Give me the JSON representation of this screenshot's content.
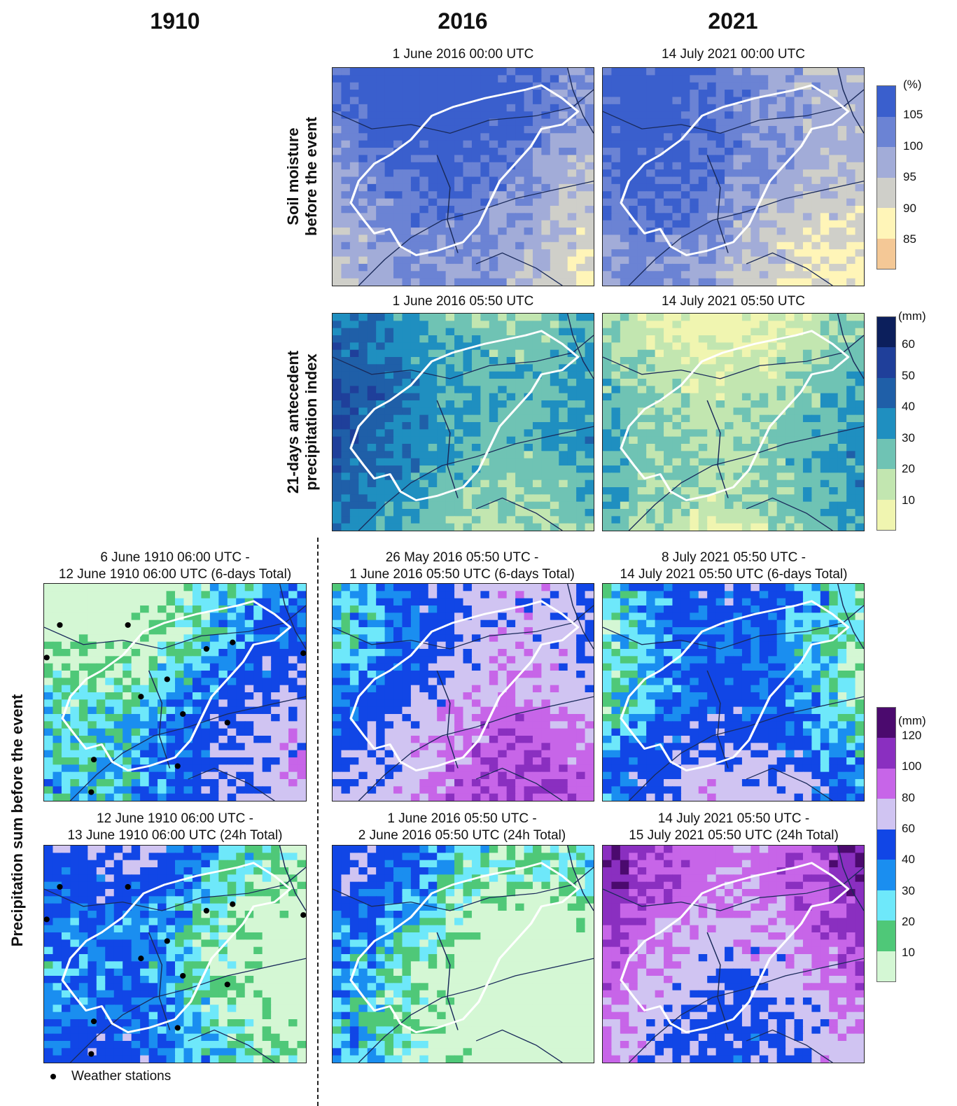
{
  "columns": [
    "1910",
    "2016",
    "2021"
  ],
  "rows": [
    {
      "label_lines": [
        "Soil moisture",
        "before the event"
      ]
    },
    {
      "label_lines": [
        "21-days antecedent",
        "precipitation index"
      ]
    },
    {
      "label_lines": [
        "Precipitation sum before the event"
      ]
    }
  ],
  "panels": {
    "soil_2016": {
      "title": [
        "1 June 2016 00:00 UTC"
      ],
      "palette": "soil",
      "base": 100
    },
    "soil_2021": {
      "title": [
        "14 July 2021 00:00 UTC"
      ],
      "palette": "soil",
      "base": 98
    },
    "api_2016": {
      "title": [
        "1 June 2016 05:50 UTC"
      ],
      "palette": "api",
      "base": 30
    },
    "api_2021": {
      "title": [
        "14 July 2021 05:50 UTC"
      ],
      "palette": "api",
      "base": 20
    },
    "p6_1910": {
      "title": [
        "6 June 1910 06:00 UTC -",
        "12 June 1910 06:00 UTC (6-days Total)"
      ],
      "palette": "precip",
      "base": 30
    },
    "p6_2016": {
      "title": [
        "26 May 2016 05:50 UTC -",
        "1 June 2016 05:50 UTC (6-days Total)"
      ],
      "palette": "precip",
      "base": 65
    },
    "p6_2021": {
      "title": [
        "8 July 2021 05:50 UTC -",
        "14 July 2021 05:50 UTC (6-days Total)"
      ],
      "palette": "precip",
      "base": 40
    },
    "p24_1910": {
      "title": [
        "12 June 1910 06:00 UTC -",
        "13 June 1910 06:00 UTC (24h Total)"
      ],
      "palette": "precip",
      "base": 35
    },
    "p24_2016": {
      "title": [
        "1 June 2016 05:50 UTC -",
        "2 June 2016 05:50 UTC (24h Total)"
      ],
      "palette": "precip",
      "base": 25
    },
    "p24_2021": {
      "title": [
        "14 July 2021 05:50 UTC -",
        "15 July 2021 05:50 UTC (24h Total)"
      ],
      "palette": "precip",
      "base": 90
    }
  },
  "legends": {
    "soil": {
      "unit": "(%)",
      "ticks": [
        "105",
        "100",
        "95",
        "90",
        "85"
      ],
      "colors": [
        "#3a5fcd",
        "#6b83d4",
        "#a2acd8",
        "#cfcfc9",
        "#fff5b8",
        "#f4c896"
      ]
    },
    "api": {
      "unit": "(mm)",
      "ticks": [
        "60",
        "50",
        "40",
        "30",
        "20",
        "10"
      ],
      "colors": [
        "#0c1f5c",
        "#1f3f9a",
        "#1f5fa8",
        "#1f8fc0",
        "#6fc3b4",
        "#c2e6b0",
        "#f0f5b0"
      ]
    },
    "precip": {
      "unit": "(mm)",
      "ticks": [
        "120",
        "100",
        "80",
        "60",
        "40",
        "30",
        "20",
        "10"
      ],
      "colors": [
        "#4b0a6e",
        "#8a2fc0",
        "#c765e8",
        "#d0c4f2",
        "#1146e6",
        "#1a8ef0",
        "#6ee8fa",
        "#4fc878",
        "#d4f7d4"
      ]
    }
  },
  "station_legend": "Weather stations"
}
